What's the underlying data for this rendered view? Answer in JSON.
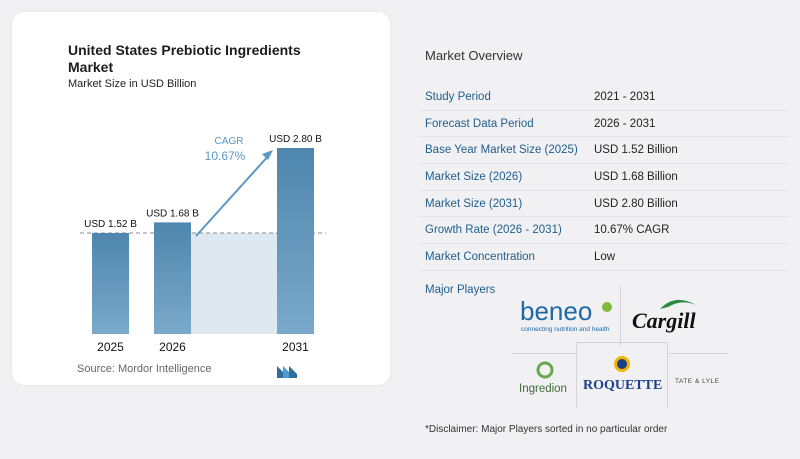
{
  "chart": {
    "title": "United States Prebiotic Ingredients Market",
    "subtitle": "Market Size in USD Billion",
    "cagr_label": "CAGR",
    "cagr_value": "10.67%",
    "source": "Source: Mordor Intelligence"
  },
  "chart_data": {
    "type": "bar",
    "categories": [
      "2025",
      "2026",
      "2031"
    ],
    "values": [
      1.52,
      1.68,
      2.8
    ],
    "value_labels": [
      "USD 1.52 B",
      "USD 1.68 B",
      "USD 2.80 B"
    ],
    "title": "United States Prebiotic Ingredients Market",
    "subtitle": "Market Size in USD Billion",
    "annotation": "CAGR 10.67%",
    "colors": {
      "bar": "#6a9cc0",
      "bar_top": "#4f86ad",
      "shade": "#dde8f1",
      "arrow": "#5d97c3"
    },
    "grid": false
  },
  "overview": {
    "title": "Market Overview",
    "rows": [
      {
        "label": "Study Period",
        "value": "2021 - 2031"
      },
      {
        "label": "Forecast Data Period",
        "value": "2026 - 2031"
      },
      {
        "label": "Base Year Market Size (2025)",
        "value": "USD 1.52 Billion"
      },
      {
        "label": "Market Size (2026)",
        "value": "USD 1.68 Billion"
      },
      {
        "label": "Market Size (2031)",
        "value": "USD 2.80 Billion"
      },
      {
        "label": "Growth Rate (2026 - 2031)",
        "value": "10.67% CAGR"
      },
      {
        "label": "Market Concentration",
        "value": "Low"
      }
    ],
    "players_label": "Major Players",
    "players": {
      "beneo": "beneo",
      "beneo_tagline": "connecting nutrition and health",
      "cargill": "Cargill",
      "ingredion": "Ingredion",
      "roquette": "ROQUETTE",
      "tate_lyle": "TATE & LYLE"
    },
    "disclaimer": "*Disclaimer: Major Players sorted in no particular order"
  }
}
